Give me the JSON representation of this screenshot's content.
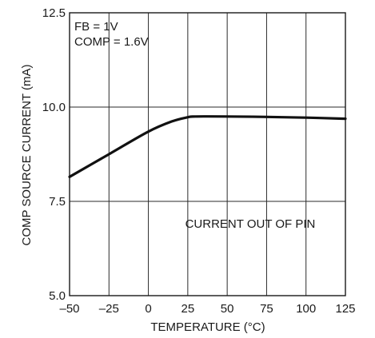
{
  "chart_data": {
    "type": "line",
    "title": "",
    "xlabel": "TEMPERATURE (°C)",
    "ylabel": "COMP SOURCE CURRENT (mA)",
    "xlim": [
      -50,
      125
    ],
    "ylim": [
      5.0,
      12.5
    ],
    "x_ticks": [
      -50,
      -25,
      0,
      25,
      50,
      75,
      100,
      125
    ],
    "x_tick_labels": [
      "–50",
      "–25",
      "0",
      "25",
      "50",
      "75",
      "100",
      "125"
    ],
    "y_ticks": [
      5.0,
      7.5,
      10.0,
      12.5
    ],
    "y_tick_labels": [
      "5.0",
      "7.5",
      "10.0",
      "12.5"
    ],
    "grid": true,
    "annotations": [
      "FB = 1V",
      "COMP = 1.6V",
      "CURRENT OUT OF PIN"
    ],
    "series": [
      {
        "x": [
          -50,
          -25,
          0,
          15,
          25,
          30,
          50,
          75,
          100,
          125
        ],
        "y": [
          8.15,
          8.75,
          9.35,
          9.62,
          9.73,
          9.75,
          9.75,
          9.74,
          9.72,
          9.69
        ]
      }
    ]
  }
}
